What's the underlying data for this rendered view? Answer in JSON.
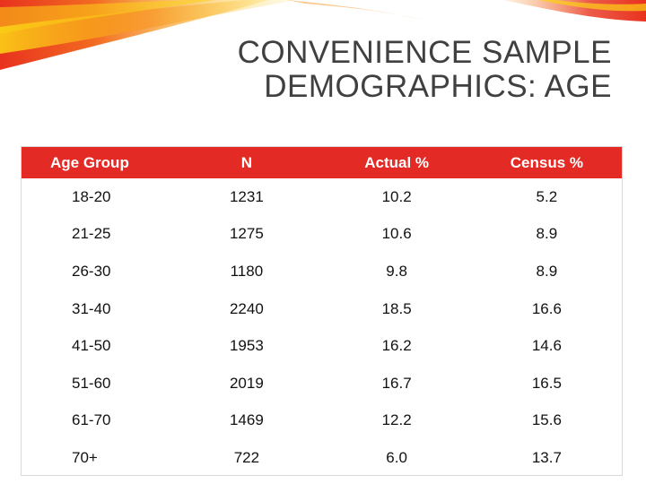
{
  "slide": {
    "title_line1": "CONVENIENCE SAMPLE",
    "title_line2": "DEMOGRAPHICS: AGE"
  },
  "table": {
    "headers": [
      "Age Group",
      "N",
      "Actual %",
      "Census %"
    ],
    "rows": [
      [
        "18-20",
        "1231",
        "10.2",
        "5.2"
      ],
      [
        "21-25",
        "1275",
        "10.6",
        "8.9"
      ],
      [
        "26-30",
        "1180",
        "9.8",
        "8.9"
      ],
      [
        "31-40",
        "2240",
        "18.5",
        "16.6"
      ],
      [
        "41-50",
        "1953",
        "16.2",
        "14.6"
      ],
      [
        "51-60",
        "2019",
        "16.7",
        "16.5"
      ],
      [
        "61-70",
        "1469",
        "12.2",
        "15.6"
      ],
      [
        "70+",
        "722",
        "6.0",
        "13.7"
      ]
    ]
  },
  "colors": {
    "header_bg": "#e32a25",
    "header_text": "#ffffff",
    "flame_red": "#e8321e",
    "flame_orange": "#f7941d",
    "flame_yellow": "#fcd116"
  }
}
